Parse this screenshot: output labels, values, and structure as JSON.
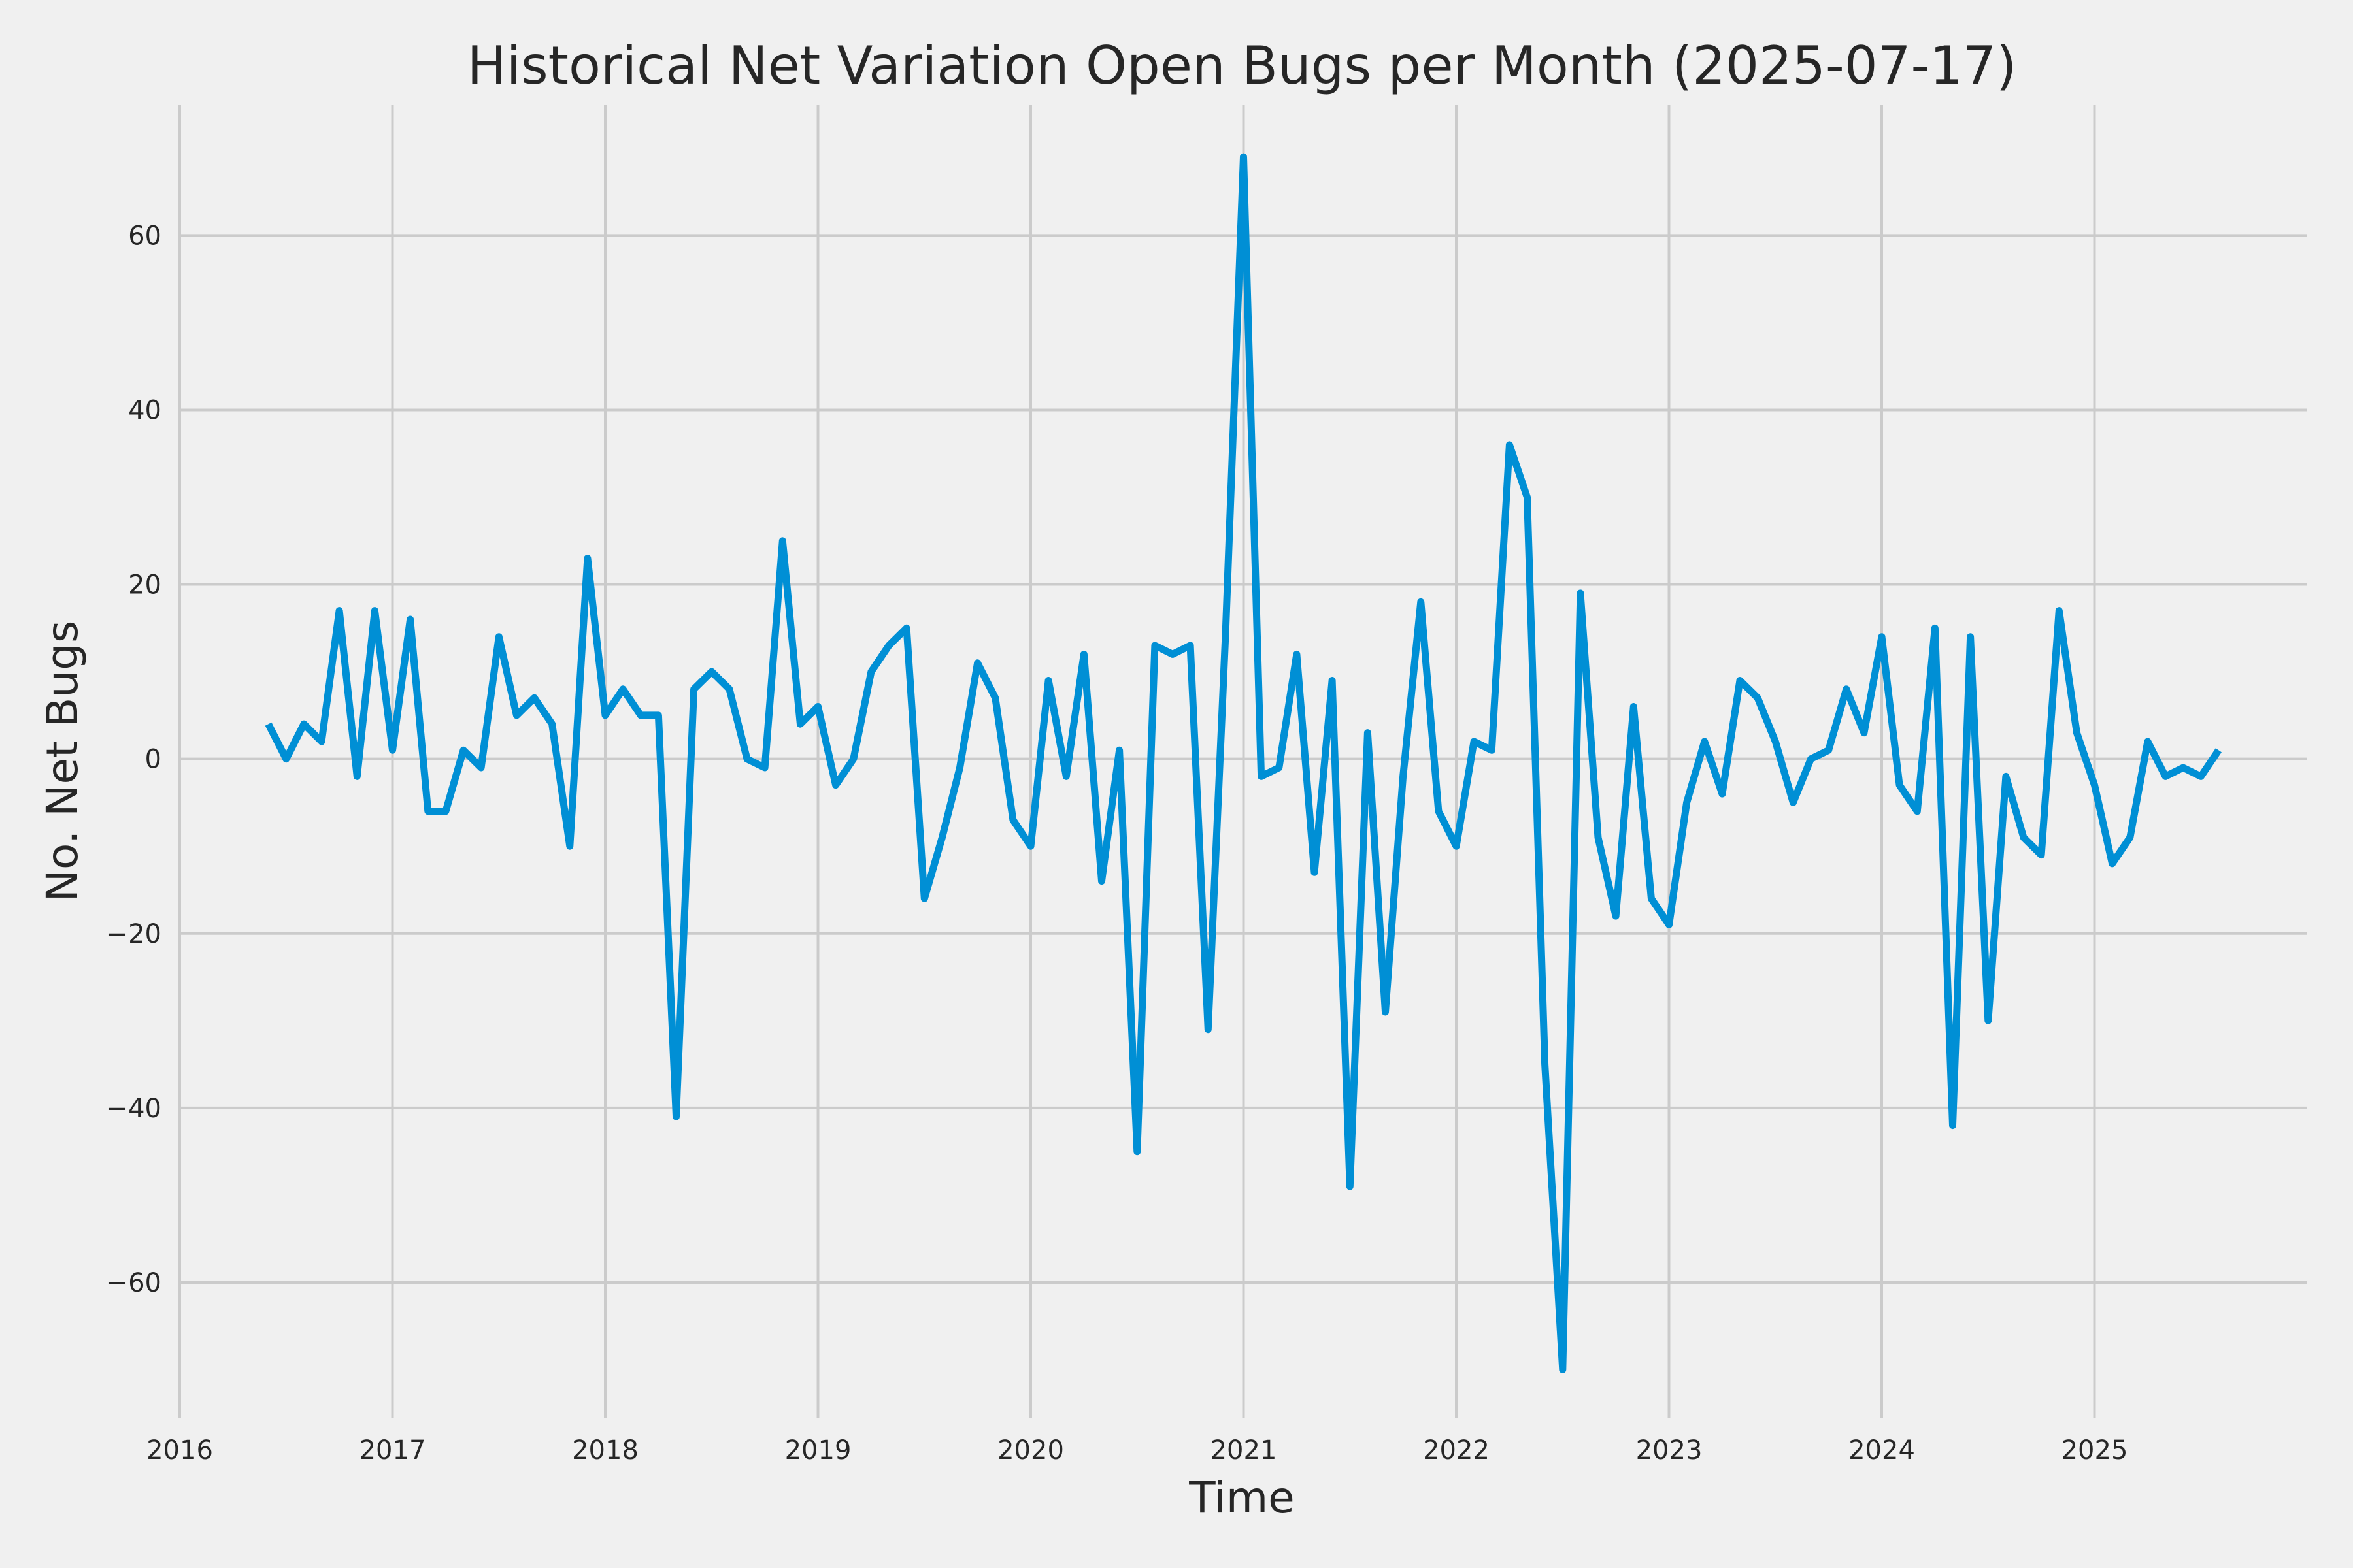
{
  "chart_data": {
    "type": "line",
    "title": "Historical Net Variation Open Bugs per Month (2025-07-17)",
    "xlabel": "Time",
    "ylabel": "No. Net Bugs",
    "x_tick_labels": [
      "2016",
      "2017",
      "2018",
      "2019",
      "2020",
      "2021",
      "2022",
      "2023",
      "2024",
      "2025"
    ],
    "y_ticks": [
      -60,
      -40,
      -20,
      0,
      20,
      40,
      60
    ],
    "xlim": [
      "2016-01",
      "2026-01"
    ],
    "ylim": [
      -75.5,
      75
    ],
    "grid": true,
    "legend": "none",
    "colors": {
      "background": "#f0f0f0",
      "series": "#008fd5",
      "grid": "#cbcbcb",
      "text": "#262626"
    },
    "series": [
      {
        "x": [
          "2016-06",
          "2016-07",
          "2016-08",
          "2016-09",
          "2016-10",
          "2016-11",
          "2016-12",
          "2017-01",
          "2017-02",
          "2017-03",
          "2017-04",
          "2017-05",
          "2017-06",
          "2017-07",
          "2017-08",
          "2017-09",
          "2017-10",
          "2017-11",
          "2017-12",
          "2018-01",
          "2018-02",
          "2018-03",
          "2018-04",
          "2018-05",
          "2018-06",
          "2018-07",
          "2018-08",
          "2018-09",
          "2018-10",
          "2018-11",
          "2018-12",
          "2019-01",
          "2019-02",
          "2019-03",
          "2019-04",
          "2019-05",
          "2019-06",
          "2019-07",
          "2019-08",
          "2019-09",
          "2019-10",
          "2019-11",
          "2019-12",
          "2020-01",
          "2020-02",
          "2020-03",
          "2020-04",
          "2020-05",
          "2020-06",
          "2020-07",
          "2020-08",
          "2020-09",
          "2020-10",
          "2020-11",
          "2020-12",
          "2021-01",
          "2021-02",
          "2021-03",
          "2021-04",
          "2021-05",
          "2021-06",
          "2021-07",
          "2021-08",
          "2021-09",
          "2021-10",
          "2021-11",
          "2021-12",
          "2022-01",
          "2022-02",
          "2022-03",
          "2022-04",
          "2022-05",
          "2022-06",
          "2022-07",
          "2022-08",
          "2022-09",
          "2022-10",
          "2022-11",
          "2022-12",
          "2023-01",
          "2023-02",
          "2023-03",
          "2023-04",
          "2023-05",
          "2023-06",
          "2023-07",
          "2023-08",
          "2023-09",
          "2023-10",
          "2023-11",
          "2023-12",
          "2024-01",
          "2024-02",
          "2024-03",
          "2024-04",
          "2024-05",
          "2024-06",
          "2024-07",
          "2024-08",
          "2024-09",
          "2024-10",
          "2024-11",
          "2024-12",
          "2025-01",
          "2025-02",
          "2025-03",
          "2025-04",
          "2025-05",
          "2025-06",
          "2025-07",
          "2025-08"
        ],
        "values": [
          4,
          0,
          4,
          2,
          17,
          -2,
          17,
          1,
          16,
          -6,
          -6,
          1,
          -1,
          14,
          5,
          7,
          4,
          -10,
          23,
          5,
          8,
          5,
          5,
          -41,
          8,
          10,
          8,
          0,
          -1,
          25,
          4,
          6,
          -3,
          0,
          10,
          13,
          15,
          -16,
          -9,
          -1,
          11,
          7,
          -7,
          -10,
          9,
          -2,
          12,
          -14,
          1,
          -45,
          13,
          12,
          13,
          -31,
          15,
          69,
          -2,
          -1,
          12,
          -13,
          9,
          -49,
          3,
          -29,
          -2,
          18,
          -6,
          -10,
          2,
          1,
          36,
          30,
          -35,
          -70,
          19,
          -9,
          -18,
          6,
          -16,
          -19,
          -5,
          2,
          -4,
          9,
          7,
          2,
          -5,
          0,
          1,
          8,
          3,
          14,
          -3,
          -6,
          15,
          -42,
          14,
          -30,
          -2,
          -9,
          -11,
          17,
          3,
          -3,
          -12,
          -9,
          2,
          -2,
          -1,
          -2,
          1
        ]
      }
    ]
  }
}
